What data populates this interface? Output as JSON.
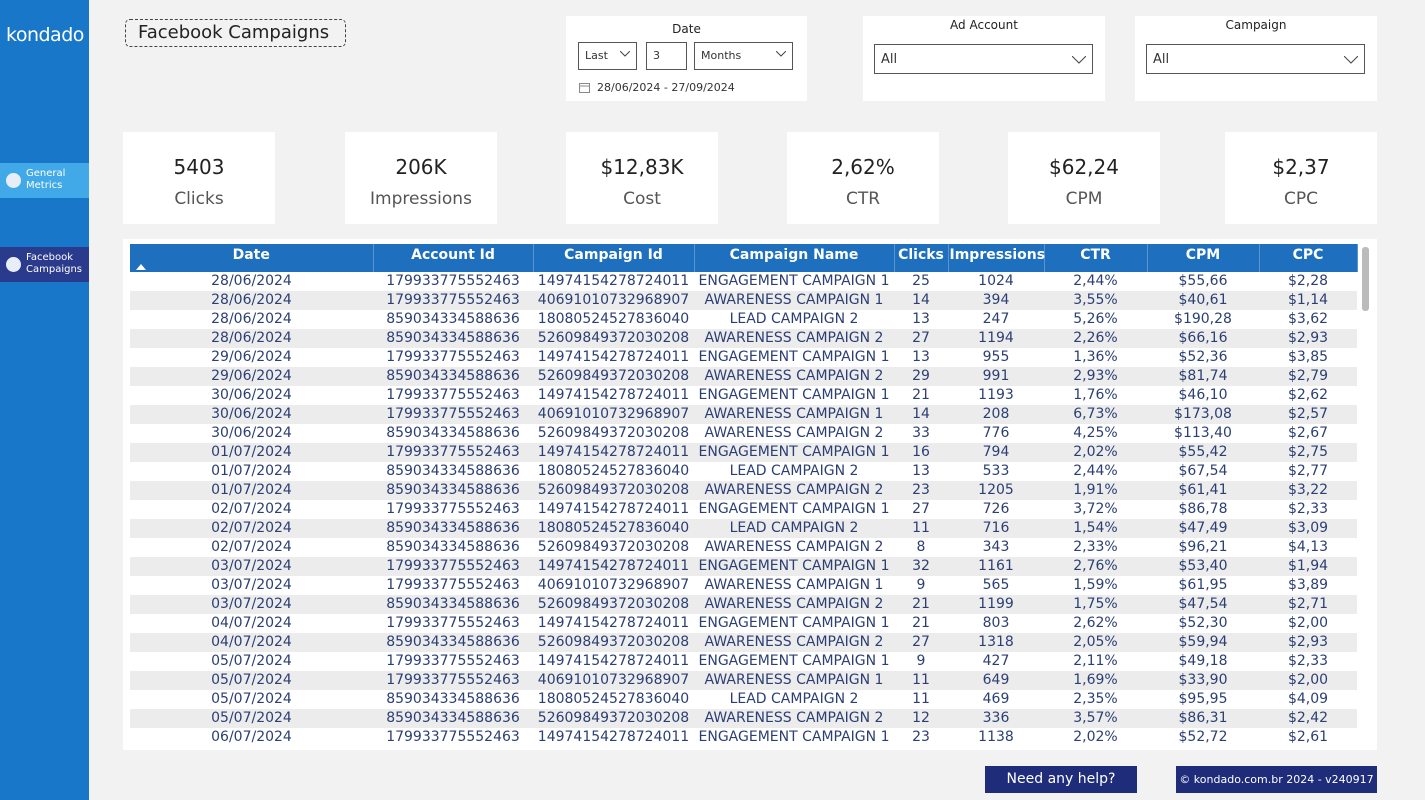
{
  "sidebar": {
    "logo": "kondado",
    "nav": [
      "General Metrics",
      "Facebook Campaigns"
    ]
  },
  "header": {
    "title": "Facebook Campaigns"
  },
  "filters": {
    "date": {
      "label": "Date",
      "mode": "Last",
      "count": "3",
      "unit": "Months",
      "range": "28/06/2024 - 27/09/2024"
    },
    "ad_account": {
      "label": "Ad Account",
      "value": "All"
    },
    "campaign": {
      "label": "Campaign",
      "value": "All"
    }
  },
  "kpis": [
    {
      "value": "5403",
      "label": "Clicks"
    },
    {
      "value": "206K",
      "label": "Impressions"
    },
    {
      "value": "$12,83K",
      "label": "Cost"
    },
    {
      "value": "2,62%",
      "label": "CTR"
    },
    {
      "value": "$62,24",
      "label": "CPM"
    },
    {
      "value": "$2,37",
      "label": "CPC"
    }
  ],
  "table": {
    "columns": [
      "Date",
      "Account Id",
      "Campaign Id",
      "Campaign Name",
      "Clicks",
      "Impressions",
      "CTR",
      "CPM",
      "CPC"
    ],
    "rows": [
      [
        "28/06/2024",
        "179933775552463",
        "14974154278724011",
        "ENGAGEMENT CAMPAIGN 1",
        "25",
        "1024",
        "2,44%",
        "$55,66",
        "$2,28"
      ],
      [
        "28/06/2024",
        "179933775552463",
        "40691010732968907",
        "AWARENESS CAMPAIGN 1",
        "14",
        "394",
        "3,55%",
        "$40,61",
        "$1,14"
      ],
      [
        "28/06/2024",
        "859034334588636",
        "18080524527836040",
        "LEAD CAMPAIGN 2",
        "13",
        "247",
        "5,26%",
        "$190,28",
        "$3,62"
      ],
      [
        "28/06/2024",
        "859034334588636",
        "52609849372030208",
        "AWARENESS CAMPAIGN 2",
        "27",
        "1194",
        "2,26%",
        "$66,16",
        "$2,93"
      ],
      [
        "29/06/2024",
        "179933775552463",
        "14974154278724011",
        "ENGAGEMENT CAMPAIGN 1",
        "13",
        "955",
        "1,36%",
        "$52,36",
        "$3,85"
      ],
      [
        "29/06/2024",
        "859034334588636",
        "52609849372030208",
        "AWARENESS CAMPAIGN 2",
        "29",
        "991",
        "2,93%",
        "$81,74",
        "$2,79"
      ],
      [
        "30/06/2024",
        "179933775552463",
        "14974154278724011",
        "ENGAGEMENT CAMPAIGN 1",
        "21",
        "1193",
        "1,76%",
        "$46,10",
        "$2,62"
      ],
      [
        "30/06/2024",
        "179933775552463",
        "40691010732968907",
        "AWARENESS CAMPAIGN 1",
        "14",
        "208",
        "6,73%",
        "$173,08",
        "$2,57"
      ],
      [
        "30/06/2024",
        "859034334588636",
        "52609849372030208",
        "AWARENESS CAMPAIGN 2",
        "33",
        "776",
        "4,25%",
        "$113,40",
        "$2,67"
      ],
      [
        "01/07/2024",
        "179933775552463",
        "14974154278724011",
        "ENGAGEMENT CAMPAIGN 1",
        "16",
        "794",
        "2,02%",
        "$55,42",
        "$2,75"
      ],
      [
        "01/07/2024",
        "859034334588636",
        "18080524527836040",
        "LEAD CAMPAIGN 2",
        "13",
        "533",
        "2,44%",
        "$67,54",
        "$2,77"
      ],
      [
        "01/07/2024",
        "859034334588636",
        "52609849372030208",
        "AWARENESS CAMPAIGN 2",
        "23",
        "1205",
        "1,91%",
        "$61,41",
        "$3,22"
      ],
      [
        "02/07/2024",
        "179933775552463",
        "14974154278724011",
        "ENGAGEMENT CAMPAIGN 1",
        "27",
        "726",
        "3,72%",
        "$86,78",
        "$2,33"
      ],
      [
        "02/07/2024",
        "859034334588636",
        "18080524527836040",
        "LEAD CAMPAIGN 2",
        "11",
        "716",
        "1,54%",
        "$47,49",
        "$3,09"
      ],
      [
        "02/07/2024",
        "859034334588636",
        "52609849372030208",
        "AWARENESS CAMPAIGN 2",
        "8",
        "343",
        "2,33%",
        "$96,21",
        "$4,13"
      ],
      [
        "03/07/2024",
        "179933775552463",
        "14974154278724011",
        "ENGAGEMENT CAMPAIGN 1",
        "32",
        "1161",
        "2,76%",
        "$53,40",
        "$1,94"
      ],
      [
        "03/07/2024",
        "179933775552463",
        "40691010732968907",
        "AWARENESS CAMPAIGN 1",
        "9",
        "565",
        "1,59%",
        "$61,95",
        "$3,89"
      ],
      [
        "03/07/2024",
        "859034334588636",
        "52609849372030208",
        "AWARENESS CAMPAIGN 2",
        "21",
        "1199",
        "1,75%",
        "$47,54",
        "$2,71"
      ],
      [
        "04/07/2024",
        "179933775552463",
        "14974154278724011",
        "ENGAGEMENT CAMPAIGN 1",
        "21",
        "803",
        "2,62%",
        "$52,30",
        "$2,00"
      ],
      [
        "04/07/2024",
        "859034334588636",
        "52609849372030208",
        "AWARENESS CAMPAIGN 2",
        "27",
        "1318",
        "2,05%",
        "$59,94",
        "$2,93"
      ],
      [
        "05/07/2024",
        "179933775552463",
        "14974154278724011",
        "ENGAGEMENT CAMPAIGN 1",
        "9",
        "427",
        "2,11%",
        "$49,18",
        "$2,33"
      ],
      [
        "05/07/2024",
        "179933775552463",
        "40691010732968907",
        "AWARENESS CAMPAIGN 1",
        "11",
        "649",
        "1,69%",
        "$33,90",
        "$2,00"
      ],
      [
        "05/07/2024",
        "859034334588636",
        "18080524527836040",
        "LEAD CAMPAIGN 2",
        "11",
        "469",
        "2,35%",
        "$95,95",
        "$4,09"
      ],
      [
        "05/07/2024",
        "859034334588636",
        "52609849372030208",
        "AWARENESS CAMPAIGN 2",
        "12",
        "336",
        "3,57%",
        "$86,31",
        "$2,42"
      ],
      [
        "06/07/2024",
        "179933775552463",
        "14974154278724011",
        "ENGAGEMENT CAMPAIGN 1",
        "23",
        "1138",
        "2,02%",
        "$52,72",
        "$2,61"
      ]
    ]
  },
  "footer": {
    "help": "Need any help?",
    "copyright": "© kondado.com.br 2024 - v240917"
  }
}
